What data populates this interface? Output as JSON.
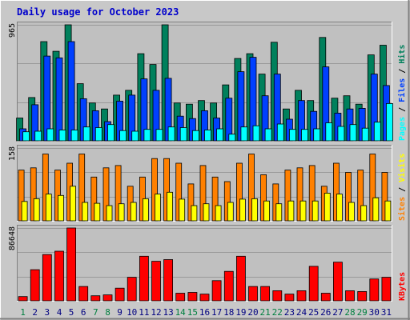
{
  "chart_data": {
    "type": "bar",
    "title": "Daily usage for October 2023",
    "colors": {
      "title": "#0000cc",
      "background": "#c8c8c8",
      "plot": "#c0c0c0",
      "hits": "#00805c",
      "files": "#0040ff",
      "pages": "#00ffff",
      "visits": "#ffff00",
      "sites": "#ff8000",
      "kbytes": "#ff0000",
      "weekend_label": "#008040",
      "weekday_label": "#000080"
    },
    "categories": [
      "1",
      "2",
      "3",
      "4",
      "5",
      "6",
      "7",
      "8",
      "9",
      "10",
      "11",
      "12",
      "13",
      "14",
      "15",
      "16",
      "17",
      "18",
      "19",
      "20",
      "21",
      "22",
      "23",
      "24",
      "25",
      "26",
      "27",
      "28",
      "29",
      "30",
      "31"
    ],
    "weekend_days": [
      "1",
      "7",
      "8",
      "14",
      "15",
      "21",
      "22",
      "28",
      "29"
    ],
    "panels": [
      {
        "id": "hits-files-pages",
        "y_max_label": "965",
        "y_max": 965,
        "legend": [
          "Pages",
          "/",
          "Files",
          "/",
          "Hits"
        ],
        "series": [
          {
            "name": "Hits",
            "color": "#00805c",
            "values": [
              190,
              360,
              825,
              745,
              965,
              475,
              315,
              265,
              380,
              420,
              725,
              635,
              965,
              315,
              305,
              335,
              315,
              465,
              685,
              725,
              555,
              820,
              265,
              420,
              335,
              860,
              355,
              375,
              305,
              715,
              795
            ]
          },
          {
            "name": "Files",
            "color": "#0040ff",
            "values": [
              100,
              300,
              705,
              690,
              825,
              350,
              250,
              160,
              330,
              380,
              515,
              420,
              520,
              205,
              185,
              250,
              190,
              355,
              575,
              695,
              375,
              555,
              180,
              335,
              245,
              615,
              230,
              265,
              270,
              555,
              460
            ]
          },
          {
            "name": "Pages",
            "color": "#00ffff",
            "values": [
              75,
              80,
              100,
              90,
              90,
              115,
              110,
              135,
              85,
              80,
              95,
              95,
              115,
              110,
              85,
              90,
              100,
              55,
              115,
              125,
              100,
              140,
              95,
              95,
              100,
              150,
              120,
              135,
              105,
              155,
              310
            ]
          }
        ]
      },
      {
        "id": "visits-sites",
        "y_max_label": "158",
        "y_max": 158,
        "legend": [
          "Sites",
          "/",
          "Visits"
        ],
        "series": [
          {
            "name": "Sites",
            "color": "#ff8000",
            "values": [
              110,
              115,
              145,
              110,
              125,
              145,
              95,
              115,
              120,
              75,
              95,
              135,
              135,
              125,
              80,
              120,
              95,
              85,
              125,
              145,
              100,
              80,
              110,
              115,
              120,
              75,
              125,
              105,
              110,
              145,
              105
            ]
          },
          {
            "name": "Visits",
            "color": "#ffff00",
            "values": [
              42,
              48,
              58,
              55,
              75,
              40,
              38,
              33,
              37,
              40,
              48,
              58,
              62,
              47,
              33,
              37,
              33,
              40,
              47,
              48,
              43,
              37,
              43,
              43,
              43,
              60,
              58,
              40,
              33,
              50,
              43
            ]
          }
        ]
      },
      {
        "id": "kbytes",
        "y_max_label": "86648",
        "y_max": 86648,
        "legend": [
          "KBytes"
        ],
        "series": [
          {
            "name": "KBytes",
            "color": "#ff0000",
            "values": [
              5000,
              37000,
              55000,
              59000,
              86648,
              17000,
              6000,
              7000,
              15000,
              28000,
              53000,
              47000,
              49000,
              9000,
              10000,
              8000,
              24000,
              35000,
              53000,
              17000,
              17000,
              12000,
              8000,
              12000,
              41000,
              9000,
              46000,
              12000,
              11000,
              26000,
              28000
            ]
          }
        ]
      }
    ]
  }
}
